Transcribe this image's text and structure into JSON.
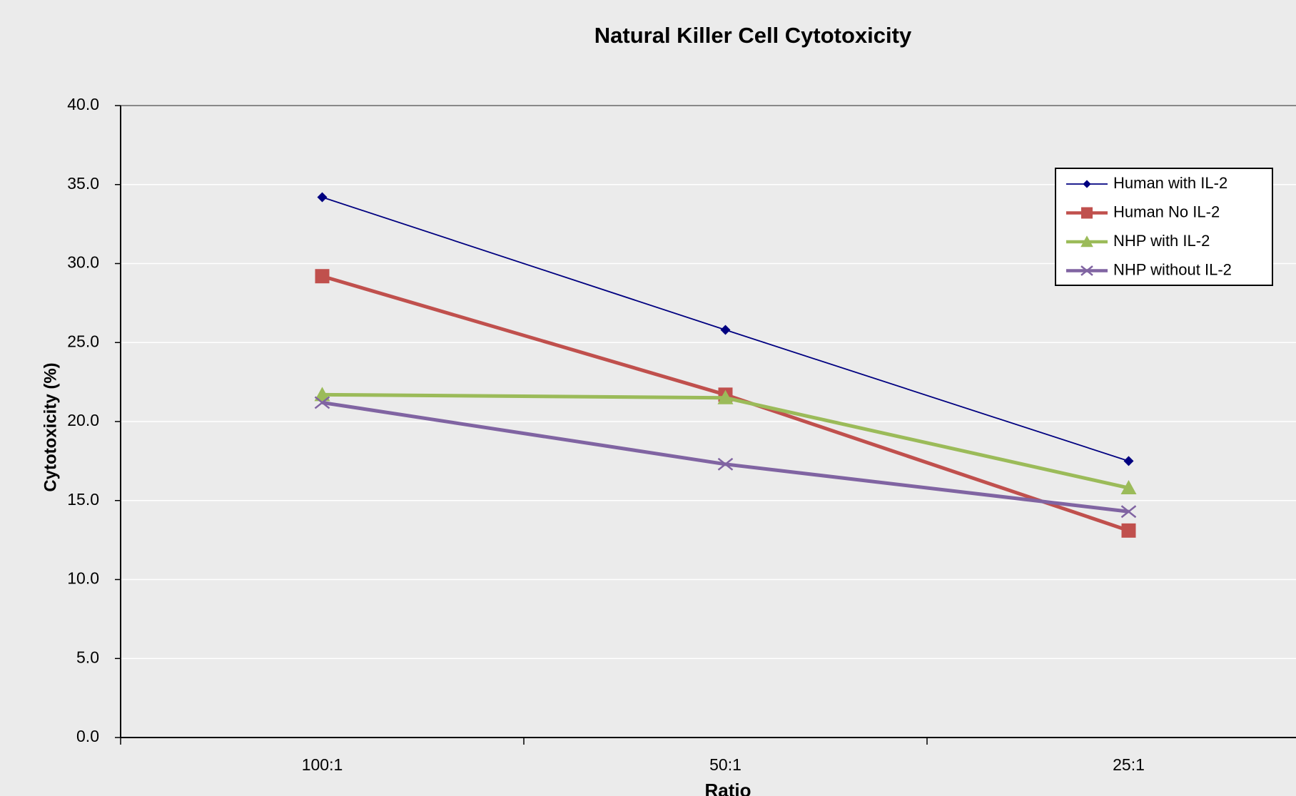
{
  "chart_data": {
    "type": "line",
    "title": "Natural Killer Cell Cytotoxicity",
    "x_label": "Ratio",
    "y_label": "Cytotoxicity (%)",
    "categories": [
      "100:1",
      "50:1",
      "25:1"
    ],
    "series": [
      {
        "name": "Human with IL-2",
        "color": "#000080",
        "marker": "diamond",
        "values": [
          34.2,
          25.8,
          17.5
        ]
      },
      {
        "name": "Human No IL-2",
        "color": "#c0504d",
        "marker": "square",
        "values": [
          29.2,
          21.7,
          13.1
        ]
      },
      {
        "name": "NHP with  IL-2",
        "color": "#9bbb59",
        "marker": "triangle",
        "values": [
          21.7,
          21.5,
          15.8
        ]
      },
      {
        "name": "NHP without  IL-2",
        "color": "#8064a2",
        "marker": "x",
        "values": [
          21.2,
          17.3,
          14.3
        ]
      }
    ],
    "ylim": [
      0,
      40
    ],
    "yticks": [
      {
        "value": 0,
        "label": "0.0"
      },
      {
        "value": 5,
        "label": "5.0"
      },
      {
        "value": 10,
        "label": "10.0"
      },
      {
        "value": 15,
        "label": "15.0"
      },
      {
        "value": 20,
        "label": "20.0"
      },
      {
        "value": 25,
        "label": "25.0"
      },
      {
        "value": 30,
        "label": "30.0"
      },
      {
        "value": 35,
        "label": "35.0"
      },
      {
        "value": 40,
        "label": "40.0"
      }
    ],
    "grid": true,
    "legend": "upper right"
  }
}
